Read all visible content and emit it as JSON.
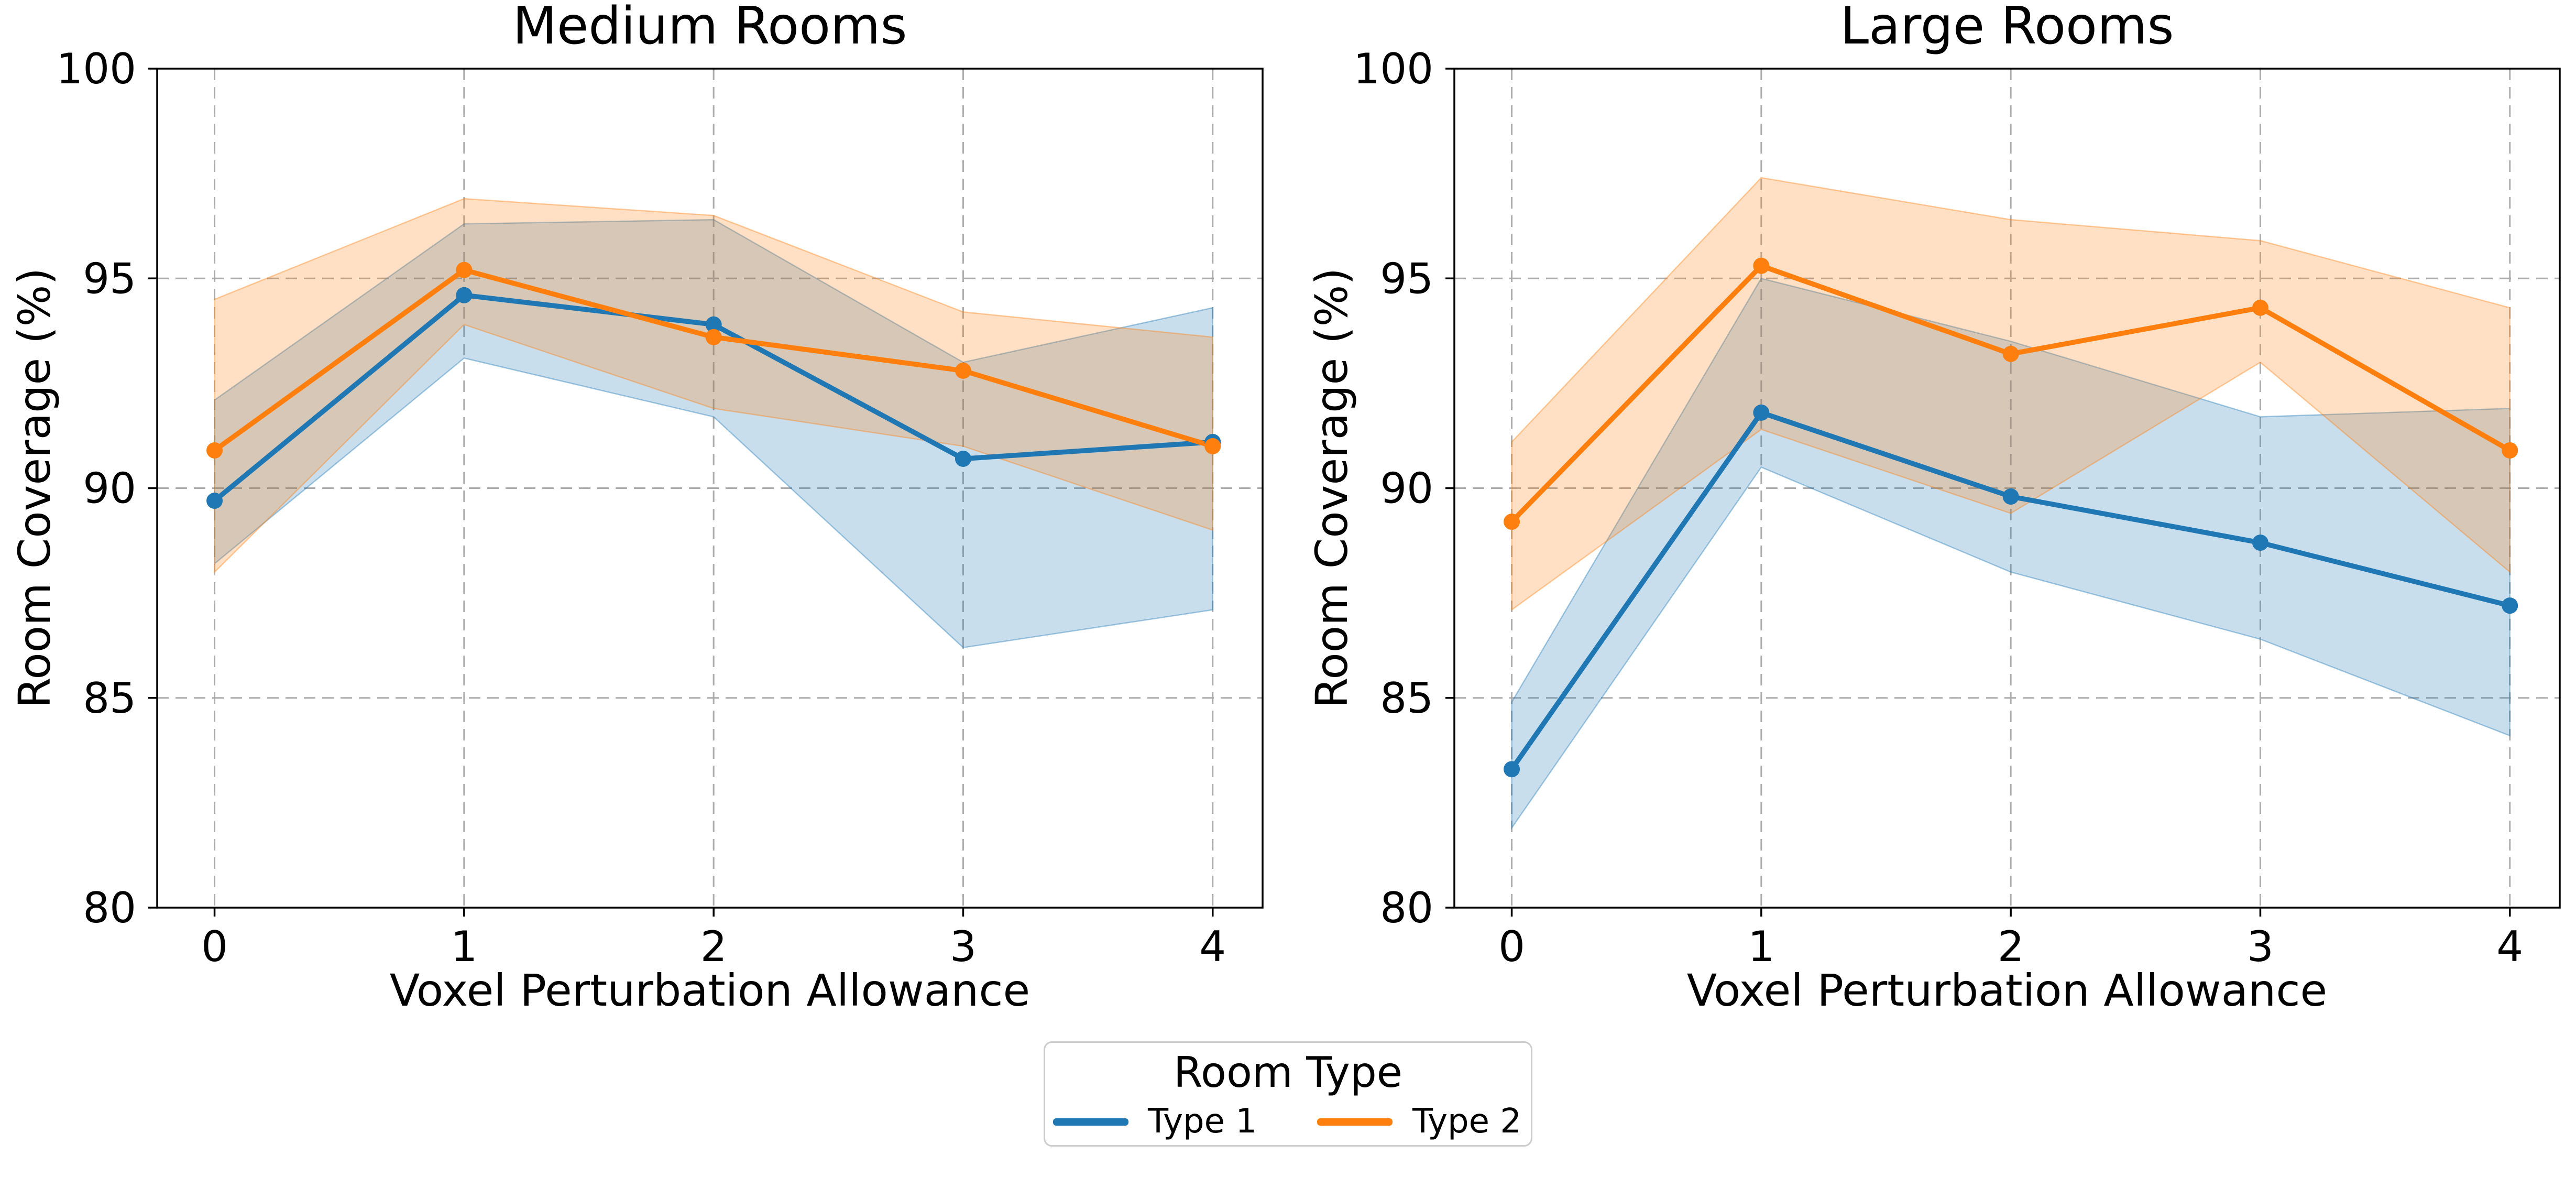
{
  "figure": {
    "background": "#ffffff"
  },
  "colors": {
    "series1": "#1f77b4",
    "series2": "#ff7f0e",
    "grid": "#ababab",
    "axis": "#000000",
    "band_opacity": 0.24
  },
  "legend": {
    "title": "Room Type",
    "entries": [
      {
        "label": "Type 1",
        "color": "#1f77b4"
      },
      {
        "label": "Type 2",
        "color": "#ff7f0e"
      }
    ]
  },
  "chart_data": [
    {
      "type": "line",
      "title": "Medium Rooms",
      "xlabel": "Voxel Perturbation Allowance",
      "ylabel": "Room Coverage (%)",
      "x": [
        0,
        1,
        2,
        3,
        4
      ],
      "xticks": [
        0,
        1,
        2,
        3,
        4
      ],
      "yticks": [
        80,
        85,
        90,
        95,
        100
      ],
      "xlim": [
        -0.23,
        4.2
      ],
      "ylim": [
        80,
        100
      ],
      "grid": "dashed",
      "legend_position": "figure-bottom-center",
      "series": [
        {
          "name": "Type 1",
          "color": "#1f77b4",
          "mean": [
            89.7,
            94.6,
            93.9,
            90.7,
            91.1
          ],
          "band_low": [
            88.2,
            93.1,
            91.7,
            86.2,
            87.1
          ],
          "band_high": [
            92.1,
            96.3,
            96.4,
            93.0,
            94.3
          ]
        },
        {
          "name": "Type 2",
          "color": "#ff7f0e",
          "mean": [
            90.9,
            95.2,
            93.6,
            92.8,
            91.0
          ],
          "band_low": [
            88.0,
            93.9,
            91.9,
            91.0,
            89.0
          ],
          "band_high": [
            94.5,
            96.9,
            96.5,
            94.2,
            93.6
          ]
        }
      ]
    },
    {
      "type": "line",
      "title": "Large Rooms",
      "xlabel": "Voxel Perturbation Allowance",
      "ylabel": "Room Coverage (%)",
      "x": [
        0,
        1,
        2,
        3,
        4
      ],
      "xticks": [
        0,
        1,
        2,
        3,
        4
      ],
      "yticks": [
        80,
        85,
        90,
        95,
        100
      ],
      "xlim": [
        -0.23,
        4.2
      ],
      "ylim": [
        80,
        100
      ],
      "grid": "dashed",
      "series": [
        {
          "name": "Type 1",
          "color": "#1f77b4",
          "mean": [
            83.3,
            91.8,
            89.8,
            88.7,
            87.2
          ],
          "band_low": [
            81.9,
            90.5,
            88.0,
            86.4,
            84.1
          ],
          "band_high": [
            84.9,
            95.0,
            93.5,
            91.7,
            91.9
          ]
        },
        {
          "name": "Type 2",
          "color": "#ff7f0e",
          "mean": [
            89.2,
            95.3,
            93.2,
            94.3,
            90.9
          ],
          "band_low": [
            87.1,
            91.4,
            89.4,
            93.0,
            88.0
          ],
          "band_high": [
            91.1,
            97.4,
            96.4,
            95.9,
            94.3
          ]
        }
      ]
    }
  ]
}
